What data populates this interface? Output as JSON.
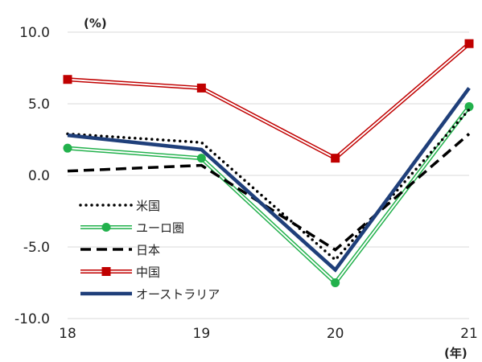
{
  "chart_data": {
    "type": "line",
    "x": [
      "18",
      "19",
      "20",
      "21"
    ],
    "ylim": [
      -10.0,
      10.0
    ],
    "yticks": [
      "10.0",
      "5.0",
      "0.0",
      "-5.0",
      "-10.0"
    ],
    "ytick_values": [
      10,
      5,
      0,
      -5,
      -10
    ],
    "y_unit": "(%)",
    "x_unit": "(年)",
    "grid": "horizontal",
    "legend_position": "left",
    "series": [
      {
        "name": "米国",
        "values": [
          2.9,
          2.3,
          -5.9,
          4.6
        ],
        "color": "#000000",
        "style": "dotted"
      },
      {
        "name": "ユーロ圏",
        "values": [
          1.9,
          1.2,
          -7.5,
          4.8
        ],
        "color": "#22b14c",
        "style": "double-circle"
      },
      {
        "name": "日本",
        "values": [
          0.3,
          0.7,
          -5.2,
          2.9
        ],
        "color": "#000000",
        "style": "dashed"
      },
      {
        "name": "中国",
        "values": [
          6.7,
          6.1,
          1.2,
          9.2
        ],
        "color": "#c00000",
        "style": "double-square"
      },
      {
        "name": "オーストラリア",
        "values": [
          2.8,
          1.8,
          -6.6,
          6.1
        ],
        "color": "#1f3f7a",
        "style": "thick"
      }
    ]
  }
}
